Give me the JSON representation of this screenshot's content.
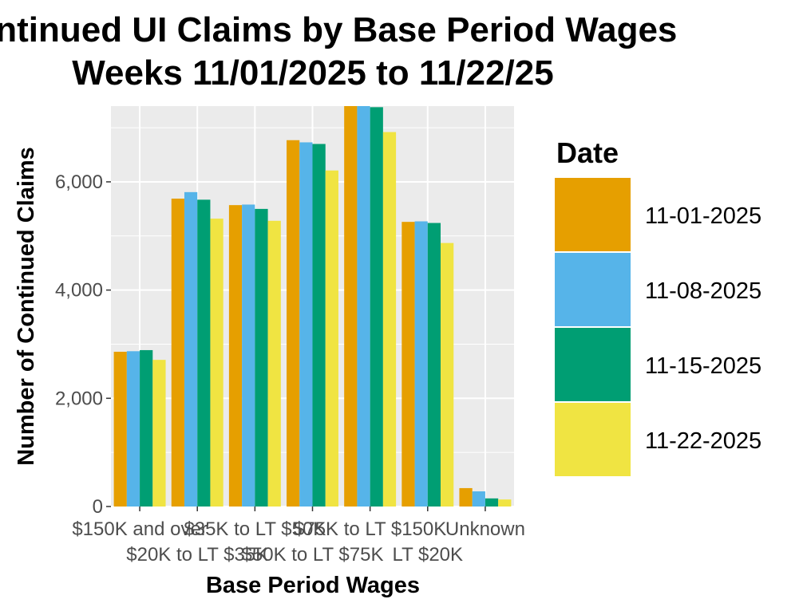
{
  "chart_data": {
    "type": "bar",
    "title_lines": [
      "Continued UI Claims by Base Period Wages",
      "Weeks 11/01/2025 to 11/22/25"
    ],
    "xlabel": "Base Period Wages",
    "ylabel": "Number of Continued Claims",
    "ylim": [
      0,
      7400
    ],
    "yticks": [
      0,
      2000,
      4000,
      6000
    ],
    "ytick_labels": [
      "0",
      "2,000",
      "4,000",
      "6,000"
    ],
    "grid": true,
    "legend_title": "Date",
    "legend_position": "right",
    "categories": [
      {
        "line1": "$150K and over",
        "line2": ""
      },
      {
        "line1": "",
        "line2": "$20K to LT $35K"
      },
      {
        "line1": "$35K to LT $50K",
        "line2": ""
      },
      {
        "line1": "",
        "line2": "$50K to LT $75K"
      },
      {
        "line1": "$75K to LT $150K",
        "line2": ""
      },
      {
        "line1": "",
        "line2": "LT $20K"
      },
      {
        "line1": "Unknown",
        "line2": ""
      }
    ],
    "series": [
      {
        "name": "11-01-2025",
        "color": "#E69F00",
        "values": [
          2860,
          5690,
          5570,
          6770,
          7400,
          5260,
          340
        ]
      },
      {
        "name": "11-08-2025",
        "color": "#56B4E9",
        "values": [
          2870,
          5810,
          5580,
          6730,
          7400,
          5270,
          280
        ]
      },
      {
        "name": "11-15-2025",
        "color": "#009E73",
        "values": [
          2890,
          5670,
          5500,
          6700,
          7380,
          5240,
          150
        ]
      },
      {
        "name": "11-22-2025",
        "color": "#F0E442",
        "values": [
          2710,
          5320,
          5280,
          6210,
          6920,
          4870,
          130
        ]
      }
    ]
  }
}
